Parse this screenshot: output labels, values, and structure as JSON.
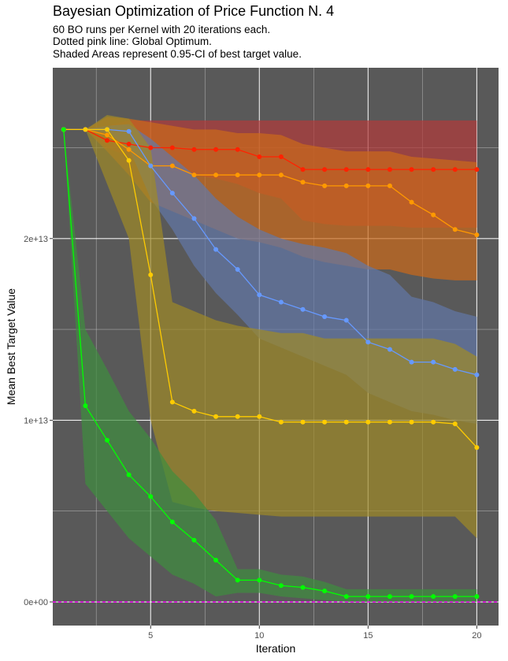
{
  "chart_data": {
    "type": "line",
    "title": "Bayesian Optimization of Price Function N. 4",
    "subtitle": [
      "60 BO runs per Kernel with 20 iterations each.",
      "Dotted pink line: Global Optimum.",
      "Shaded Areas represent 0.95-CI of best target value."
    ],
    "xlabel": "Iteration",
    "ylabel": "Mean Best Target Value",
    "xlim": [
      0.5,
      21
    ],
    "ylim": [
      -1300000000000.0,
      29400000000000.0
    ],
    "xticks": [
      5,
      10,
      15,
      20
    ],
    "xtick_labels": [
      "5",
      "10",
      "15",
      "20"
    ],
    "yticks": [
      0,
      10000000000000.0,
      20000000000000.0
    ],
    "ytick_labels": [
      "0e+00",
      "1e+13",
      "2e+13"
    ],
    "grid": true,
    "panel_background": "#595959",
    "global_optimum": 0,
    "global_optimum_color": "#ff00ff",
    "x": [
      1,
      2,
      3,
      4,
      5,
      6,
      7,
      8,
      9,
      10,
      11,
      12,
      13,
      14,
      15,
      16,
      17,
      18,
      19,
      20
    ],
    "series": [
      {
        "color": "#ff2200",
        "ci_color": "#b33a3a",
        "values": [
          26000000000000.0,
          26000000000000.0,
          25400000000000.0,
          25200000000000.0,
          25000000000000.0,
          25000000000000.0,
          24900000000000.0,
          24900000000000.0,
          24900000000000.0,
          24500000000000.0,
          24500000000000.0,
          23800000000000.0,
          23800000000000.0,
          23800000000000.0,
          23800000000000.0,
          23800000000000.0,
          23800000000000.0,
          23800000000000.0,
          23800000000000.0,
          23800000000000.0
        ],
        "lower": [
          26000000000000.0,
          26000000000000.0,
          25000000000000.0,
          24500000000000.0,
          24000000000000.0,
          23800000000000.0,
          23500000000000.0,
          23300000000000.0,
          23000000000000.0,
          22500000000000.0,
          22200000000000.0,
          21000000000000.0,
          20800000000000.0,
          20700000000000.0,
          20700000000000.0,
          20700000000000.0,
          20600000000000.0,
          20600000000000.0,
          20600000000000.0,
          20600000000000.0
        ],
        "upper": [
          26000000000000.0,
          26000000000000.0,
          26200000000000.0,
          26500000000000.0,
          26500000000000.0,
          26500000000000.0,
          26500000000000.0,
          26500000000000.0,
          26500000000000.0,
          26500000000000.0,
          26500000000000.0,
          26500000000000.0,
          26500000000000.0,
          26500000000000.0,
          26500000000000.0,
          26500000000000.0,
          26500000000000.0,
          26500000000000.0,
          26500000000000.0,
          26500000000000.0
        ]
      },
      {
        "color": "#ff9900",
        "ci_color": "#cc6a1a",
        "values": [
          26000000000000.0,
          26000000000000.0,
          25700000000000.0,
          24900000000000.0,
          24000000000000.0,
          24000000000000.0,
          23500000000000.0,
          23500000000000.0,
          23500000000000.0,
          23500000000000.0,
          23500000000000.0,
          23100000000000.0,
          22900000000000.0,
          22900000000000.0,
          22900000000000.0,
          22900000000000.0,
          22000000000000.0,
          21300000000000.0,
          20500000000000.0,
          20200000000000.0
        ],
        "lower": [
          26000000000000.0,
          26000000000000.0,
          24800000000000.0,
          23500000000000.0,
          22000000000000.0,
          21500000000000.0,
          21000000000000.0,
          20500000000000.0,
          20000000000000.0,
          19800000000000.0,
          19500000000000.0,
          19000000000000.0,
          18700000000000.0,
          18500000000000.0,
          18300000000000.0,
          18300000000000.0,
          18000000000000.0,
          17800000000000.0,
          17700000000000.0,
          17700000000000.0
        ],
        "upper": [
          26000000000000.0,
          26000000000000.0,
          26700000000000.0,
          26600000000000.0,
          26400000000000.0,
          26200000000000.0,
          26000000000000.0,
          26000000000000.0,
          25800000000000.0,
          25800000000000.0,
          25700000000000.0,
          25200000000000.0,
          25000000000000.0,
          24800000000000.0,
          24800000000000.0,
          24800000000000.0,
          24500000000000.0,
          24400000000000.0,
          24300000000000.0,
          24200000000000.0
        ]
      },
      {
        "color": "#6699ff",
        "ci_color": "#6278a8",
        "values": [
          26000000000000.0,
          26000000000000.0,
          26000000000000.0,
          25900000000000.0,
          24000000000000.0,
          22500000000000.0,
          21100000000000.0,
          19400000000000.0,
          18300000000000.0,
          16900000000000.0,
          16500000000000.0,
          16100000000000.0,
          15700000000000.0,
          15500000000000.0,
          14300000000000.0,
          13900000000000.0,
          13200000000000.0,
          13200000000000.0,
          12800000000000.0,
          12500000000000.0
        ],
        "lower": [
          26000000000000.0,
          26000000000000.0,
          25800000000000.0,
          25000000000000.0,
          22200000000000.0,
          20500000000000.0,
          18500000000000.0,
          17000000000000.0,
          15800000000000.0,
          14500000000000.0,
          14000000000000.0,
          13500000000000.0,
          13000000000000.0,
          12500000000000.0,
          11500000000000.0,
          11000000000000.0,
          10500000000000.0,
          10300000000000.0,
          10000000000000.0,
          9800000000000.0
        ],
        "upper": [
          26000000000000.0,
          26000000000000.0,
          26200000000000.0,
          26300000000000.0,
          25500000000000.0,
          24500000000000.0,
          23500000000000.0,
          22200000000000.0,
          21200000000000.0,
          20500000000000.0,
          20000000000000.0,
          19700000000000.0,
          19500000000000.0,
          19200000000000.0,
          18500000000000.0,
          18000000000000.0,
          16800000000000.0,
          16500000000000.0,
          16000000000000.0,
          15700000000000.0
        ]
      },
      {
        "color": "#ffcc00",
        "ci_color": "#a08a26",
        "values": [
          26000000000000.0,
          26000000000000.0,
          26000000000000.0,
          24300000000000.0,
          18000000000000.0,
          11000000000000.0,
          10500000000000.0,
          10200000000000.0,
          10200000000000.0,
          10200000000000.0,
          9900000000000.0,
          9900000000000.0,
          9900000000000.0,
          9900000000000.0,
          9900000000000.0,
          9900000000000.0,
          9900000000000.0,
          9900000000000.0,
          9800000000000.0,
          8500000000000.0
        ],
        "lower": [
          26000000000000.0,
          26000000000000.0,
          23000000000000.0,
          20000000000000.0,
          10000000000000.0,
          5500000000000.0,
          5200000000000.0,
          5000000000000.0,
          4900000000000.0,
          4800000000000.0,
          4700000000000.0,
          4700000000000.0,
          4700000000000.0,
          4700000000000.0,
          4700000000000.0,
          4700000000000.0,
          4700000000000.0,
          4700000000000.0,
          4700000000000.0,
          3500000000000.0
        ],
        "upper": [
          26000000000000.0,
          26000000000000.0,
          26800000000000.0,
          26600000000000.0,
          25000000000000.0,
          16500000000000.0,
          16000000000000.0,
          15500000000000.0,
          15200000000000.0,
          15000000000000.0,
          14800000000000.0,
          14800000000000.0,
          14500000000000.0,
          14500000000000.0,
          14500000000000.0,
          14500000000000.0,
          14500000000000.0,
          14500000000000.0,
          14200000000000.0,
          13500000000000.0
        ]
      },
      {
        "color": "#00ff00",
        "ci_color": "#3f8f3f",
        "values": [
          26000000000000.0,
          10800000000000.0,
          8900000000000.0,
          7000000000000.0,
          5800000000000.0,
          4400000000000.0,
          3400000000000.0,
          2300000000000.0,
          1200000000000.0,
          1200000000000.0,
          900000000000.0,
          800000000000.0,
          600000000000.0,
          300000000000.0,
          300000000000.0,
          300000000000.0,
          300000000000.0,
          300000000000.0,
          300000000000.0,
          300000000000.0
        ],
        "lower": [
          26000000000000.0,
          6500000000000.0,
          5000000000000.0,
          3500000000000.0,
          2500000000000.0,
          1500000000000.0,
          1000000000000.0,
          300000000000.0,
          500000000000.0,
          500000000000.0,
          300000000000.0,
          200000000000.0,
          100000000000.0,
          0.0,
          0.0,
          0.0,
          0.0,
          0.0,
          0.0,
          0.0
        ],
        "upper": [
          26000000000000.0,
          15000000000000.0,
          12800000000000.0,
          10500000000000.0,
          9000000000000.0,
          7200000000000.0,
          6000000000000.0,
          4500000000000.0,
          1800000000000.0,
          1800000000000.0,
          1500000000000.0,
          1400000000000.0,
          1100000000000.0,
          700000000000.0,
          700000000000.0,
          700000000000.0,
          700000000000.0,
          700000000000.0,
          700000000000.0,
          700000000000.0
        ]
      }
    ]
  }
}
